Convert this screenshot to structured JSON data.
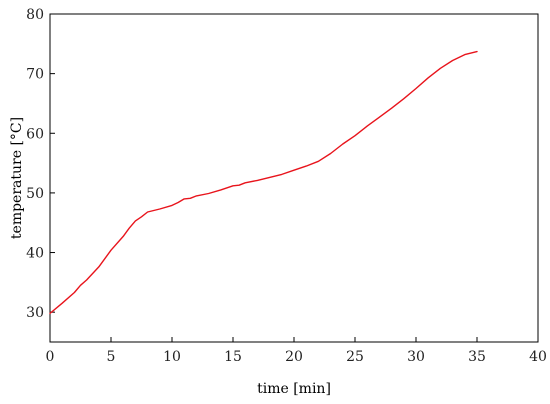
{
  "chart_data": {
    "type": "line",
    "title": "",
    "xlabel": "time [min]",
    "ylabel": "temperature [°C]",
    "xlim": [
      0,
      40
    ],
    "ylim": [
      25,
      80
    ],
    "xticks": [
      0,
      5,
      10,
      15,
      20,
      25,
      30,
      35,
      40
    ],
    "yticks": [
      30,
      40,
      50,
      60,
      70,
      80
    ],
    "grid": false,
    "legend": "none",
    "series": [
      {
        "color": "#e8141c",
        "x": [
          0,
          1,
          2,
          2.5,
          3,
          4,
          5,
          6,
          6.5,
          7,
          7.5,
          8,
          9,
          10,
          10.5,
          11,
          11.5,
          12,
          13,
          14,
          15,
          15.5,
          16,
          17,
          18,
          19,
          20,
          21,
          22,
          23,
          24,
          25,
          26,
          27,
          28,
          29,
          30,
          31,
          32,
          33,
          34,
          35
        ],
        "y": [
          29.8,
          31.5,
          33.3,
          34.5,
          35.4,
          37.6,
          40.4,
          42.7,
          44.1,
          45.3,
          46.0,
          46.8,
          47.3,
          47.9,
          48.4,
          49.0,
          49.1,
          49.5,
          49.9,
          50.5,
          51.2,
          51.3,
          51.7,
          52.1,
          52.6,
          53.1,
          53.8,
          54.5,
          55.3,
          56.6,
          58.2,
          59.6,
          61.2,
          62.7,
          64.2,
          65.8,
          67.5,
          69.3,
          70.9,
          72.2,
          73.2,
          73.7
        ]
      }
    ]
  }
}
